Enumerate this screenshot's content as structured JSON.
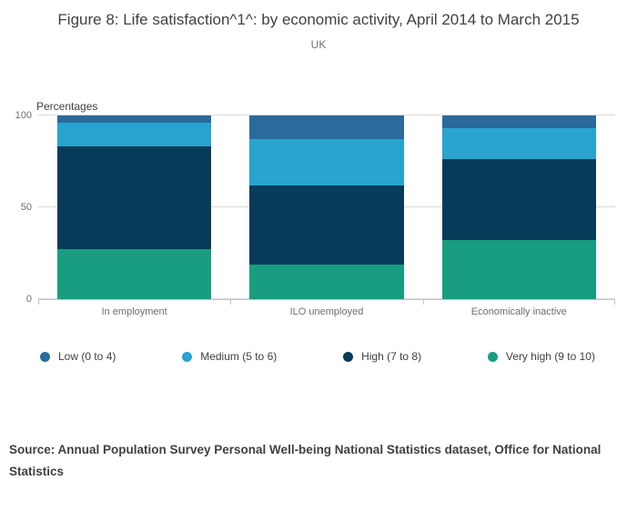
{
  "header": {
    "title": "Figure 8: Life satisfaction^1^: by economic activity, April 2014 to March 2015",
    "subtitle": "UK"
  },
  "axis": {
    "unit_label": "Percentages"
  },
  "footer": {
    "source": "Source: Annual Population Survey Personal Well-being National Statistics dataset, Office for National Statistics"
  },
  "chart_data": {
    "type": "bar",
    "stacked": true,
    "stacking": "percent",
    "title": "Figure 8: Life satisfaction^1^: by economic activity, April 2014 to March 2015",
    "subtitle": "UK",
    "ylabel": "Percentages",
    "ylim": [
      0,
      100
    ],
    "yticks": [
      0,
      50,
      100
    ],
    "grid": true,
    "legend_position": "bottom",
    "categories": [
      "In employment",
      "ILO unemployed",
      "Economically inactive"
    ],
    "series": [
      {
        "name": "Low (0 to 4)",
        "color": "#2a6b9c",
        "values": [
          4,
          13,
          7
        ]
      },
      {
        "name": "Medium (5 to 6)",
        "color": "#29a3cf",
        "values": [
          13,
          25,
          17
        ]
      },
      {
        "name": "High (7 to 8)",
        "color": "#073b5a",
        "values": [
          56,
          43,
          44
        ]
      },
      {
        "name": "Very high (9 to 10)",
        "color": "#199d80",
        "values": [
          27,
          19,
          32
        ]
      }
    ]
  }
}
